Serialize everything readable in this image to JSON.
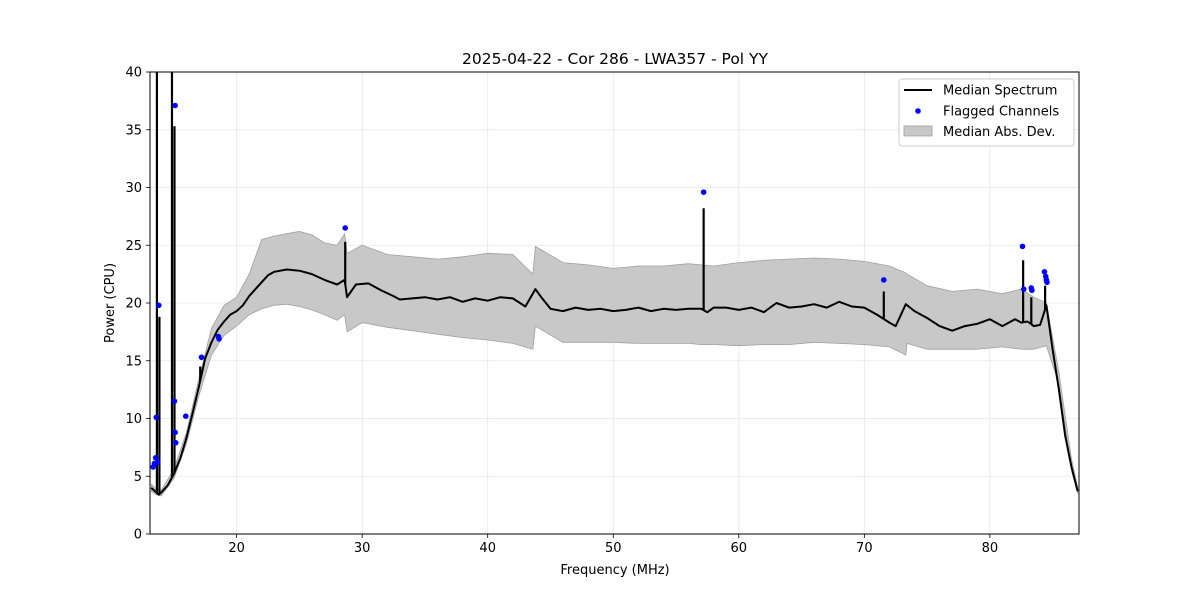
{
  "chart_data": {
    "type": "line",
    "title": "2025-04-22 - Cor 286 - LWA357 - Pol YY",
    "xlabel": "Frequency (MHz)",
    "ylabel": "Power (CPU)",
    "xlim": [
      13.1,
      87.1
    ],
    "ylim": [
      0,
      40
    ],
    "xticks": [
      "20",
      "30",
      "40",
      "50",
      "60",
      "70",
      "80"
    ],
    "yticks": [
      "0",
      "5",
      "10",
      "15",
      "20",
      "25",
      "30",
      "35",
      "40"
    ],
    "grid": true,
    "legend_position": "top-right",
    "legend": [
      "Median Spectrum",
      "Flagged Channels",
      "Median Abs. Dev."
    ],
    "colors": {
      "median": "#000000",
      "flagged": "#0000ff",
      "mad_fill": "#c8c8c8",
      "mad_edge": "#a0a0a0"
    },
    "series": [
      {
        "name": "Median Spectrum",
        "x": [
          13.2,
          13.4,
          13.6,
          13.8,
          14.0,
          14.5,
          15.0,
          15.5,
          16.0,
          16.5,
          17.0,
          17.5,
          18.0,
          18.5,
          19.0,
          19.5,
          20.0,
          20.5,
          21.0,
          21.5,
          22.0,
          22.5,
          23.0,
          24.0,
          25.0,
          26.0,
          27.0,
          28.0,
          28.6,
          28.8,
          29.5,
          30.5,
          31.5,
          32.5,
          33.0,
          34.0,
          35.0,
          36.0,
          37.0,
          38.0,
          39.0,
          40.0,
          41.0,
          42.0,
          43.0,
          43.8,
          44.2,
          45.0,
          46.0,
          47.0,
          48.0,
          49.0,
          50.0,
          51.0,
          52.0,
          53.0,
          54.0,
          55.0,
          56.0,
          57.0,
          57.5,
          58.0,
          59.0,
          60.0,
          61.0,
          62.0,
          63.0,
          64.0,
          65.0,
          66.0,
          67.0,
          68.0,
          69.0,
          70.0,
          71.0,
          72.0,
          72.5,
          73.3,
          74.0,
          75.0,
          76.0,
          77.0,
          78.0,
          79.0,
          80.0,
          81.0,
          82.0,
          82.5,
          83.0,
          83.5,
          84.0,
          84.5,
          85.0,
          85.5,
          86.0,
          86.5,
          87.0
        ],
        "y": [
          4.0,
          3.8,
          3.6,
          3.4,
          3.6,
          4.2,
          5.2,
          6.5,
          8.3,
          10.5,
          12.8,
          15.2,
          16.6,
          17.7,
          18.4,
          19.0,
          19.3,
          19.8,
          20.6,
          21.2,
          21.8,
          22.4,
          22.7,
          22.9,
          22.8,
          22.5,
          22.0,
          21.6,
          22.0,
          20.5,
          21.6,
          21.7,
          21.1,
          20.6,
          20.3,
          20.4,
          20.5,
          20.3,
          20.5,
          20.1,
          20.4,
          20.2,
          20.5,
          20.4,
          19.7,
          21.2,
          20.6,
          19.5,
          19.3,
          19.6,
          19.4,
          19.5,
          19.3,
          19.4,
          19.6,
          19.3,
          19.5,
          19.4,
          19.5,
          19.5,
          19.2,
          19.6,
          19.6,
          19.4,
          19.6,
          19.2,
          20.0,
          19.6,
          19.7,
          19.9,
          19.6,
          20.1,
          19.7,
          19.6,
          19.0,
          18.3,
          18.0,
          19.9,
          19.3,
          18.7,
          18.0,
          17.6,
          18.0,
          18.2,
          18.6,
          18.0,
          18.6,
          18.3,
          18.4,
          18.0,
          18.1,
          19.8,
          16.0,
          12.5,
          8.5,
          5.8,
          3.7
        ],
        "spikes": [
          {
            "x": 13.65,
            "y": 40.0
          },
          {
            "x": 13.85,
            "y": 18.8
          },
          {
            "x": 14.85,
            "y": 40.0
          },
          {
            "x": 15.05,
            "y": 35.3
          },
          {
            "x": 17.1,
            "y": 14.5
          },
          {
            "x": 28.65,
            "y": 25.3
          },
          {
            "x": 57.2,
            "y": 28.2
          },
          {
            "x": 71.55,
            "y": 21.0
          },
          {
            "x": 82.65,
            "y": 23.7
          },
          {
            "x": 83.3,
            "y": 20.5
          },
          {
            "x": 84.4,
            "y": 21.5
          }
        ]
      },
      {
        "name": "Median Abs. Dev.",
        "x": [
          13.2,
          13.6,
          14.0,
          15.0,
          16.0,
          17.0,
          18.0,
          19.0,
          20.0,
          21.0,
          22.0,
          23.0,
          24.0,
          25.0,
          26.0,
          27.0,
          28.0,
          28.6,
          28.8,
          30.0,
          32.0,
          34.0,
          36.0,
          38.0,
          40.0,
          42.0,
          43.6,
          43.8,
          46.0,
          48.0,
          50.0,
          52.0,
          54.0,
          56.0,
          57.0,
          58.0,
          60.0,
          62.0,
          64.0,
          66.0,
          68.0,
          70.0,
          72.0,
          73.3,
          73.4,
          75.0,
          77.0,
          79.0,
          81.0,
          82.5,
          83.5,
          84.5,
          85.5,
          86.5,
          87.0
        ],
        "upper": [
          4.3,
          3.9,
          3.8,
          5.6,
          8.8,
          13.5,
          17.8,
          19.8,
          20.5,
          22.5,
          25.5,
          25.8,
          26.0,
          26.2,
          25.9,
          25.2,
          25.0,
          26.0,
          24.3,
          25.0,
          24.2,
          24.0,
          23.8,
          24.0,
          24.3,
          24.2,
          22.5,
          24.9,
          23.5,
          23.3,
          23.0,
          23.2,
          23.2,
          23.4,
          23.3,
          23.2,
          23.5,
          23.7,
          23.8,
          23.9,
          23.8,
          23.6,
          23.2,
          22.6,
          22.5,
          21.5,
          21.0,
          21.2,
          20.8,
          21.2,
          20.5,
          20.0,
          14.0,
          6.5,
          4.0
        ],
        "lower": [
          3.7,
          3.4,
          3.3,
          4.8,
          7.8,
          12.0,
          15.5,
          17.2,
          18.0,
          19.0,
          19.5,
          19.8,
          19.9,
          19.7,
          19.4,
          19.0,
          18.5,
          19.0,
          17.5,
          18.3,
          17.9,
          17.6,
          17.3,
          17.0,
          16.8,
          16.5,
          16.0,
          18.0,
          16.6,
          16.6,
          16.6,
          16.5,
          16.5,
          16.5,
          16.4,
          16.4,
          16.3,
          16.4,
          16.4,
          16.6,
          16.5,
          16.4,
          16.2,
          15.5,
          16.5,
          16.0,
          16.0,
          16.0,
          16.2,
          16.0,
          16.0,
          16.3,
          13.0,
          5.5,
          3.5
        ]
      },
      {
        "name": "Flagged Channels",
        "points": [
          {
            "x": 13.35,
            "y": 5.8
          },
          {
            "x": 13.45,
            "y": 6.1
          },
          {
            "x": 13.55,
            "y": 6.6
          },
          {
            "x": 13.6,
            "y": 10.1
          },
          {
            "x": 13.7,
            "y": 6.2
          },
          {
            "x": 13.8,
            "y": 19.8
          },
          {
            "x": 15.1,
            "y": 37.1
          },
          {
            "x": 15.05,
            "y": 11.5
          },
          {
            "x": 15.1,
            "y": 8.8
          },
          {
            "x": 15.15,
            "y": 7.9
          },
          {
            "x": 15.95,
            "y": 10.2
          },
          {
            "x": 17.2,
            "y": 15.3
          },
          {
            "x": 18.55,
            "y": 17.1
          },
          {
            "x": 18.6,
            "y": 16.9
          },
          {
            "x": 28.65,
            "y": 26.5
          },
          {
            "x": 57.2,
            "y": 29.6
          },
          {
            "x": 71.55,
            "y": 22.0
          },
          {
            "x": 82.6,
            "y": 24.9
          },
          {
            "x": 82.7,
            "y": 21.2
          },
          {
            "x": 83.3,
            "y": 21.3
          },
          {
            "x": 83.35,
            "y": 21.1
          },
          {
            "x": 84.35,
            "y": 22.7
          },
          {
            "x": 84.45,
            "y": 22.3
          },
          {
            "x": 84.5,
            "y": 22.0
          },
          {
            "x": 84.55,
            "y": 21.8
          }
        ]
      }
    ]
  }
}
